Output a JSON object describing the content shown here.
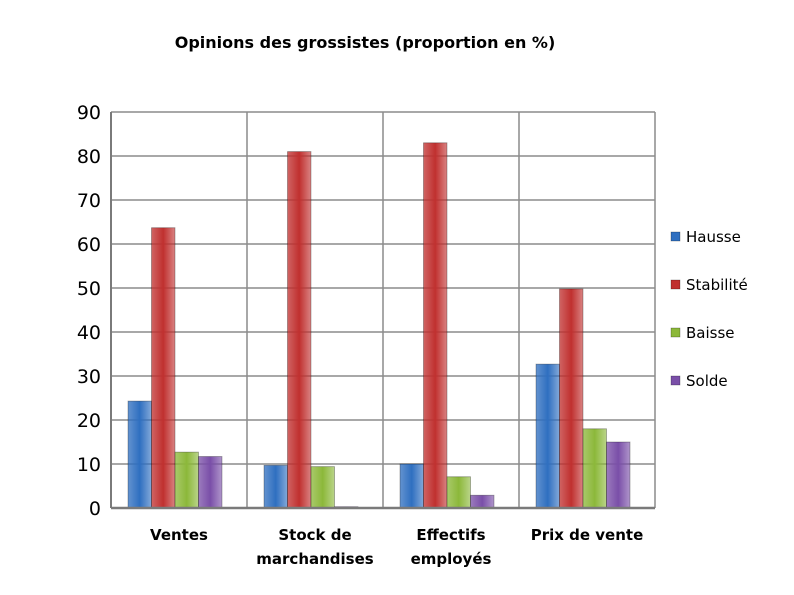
{
  "chart_data": {
    "type": "bar",
    "title": "Opinions des grossistes (proportion en %)",
    "xlabel": "",
    "ylabel": "",
    "categories": [
      "Ventes",
      "Stock de marchandises",
      "Effectifs employés",
      "Prix de vente"
    ],
    "category_lines": [
      [
        "Ventes"
      ],
      [
        "Stock de",
        "marchandises"
      ],
      [
        "Effectifs",
        "employés"
      ],
      [
        "Prix de vente"
      ]
    ],
    "series": [
      {
        "name": "Hausse",
        "color": "#2f6fc0",
        "values": [
          24.3,
          9.7,
          10,
          32.7
        ]
      },
      {
        "name": "Stabilité",
        "color": "#c0302f",
        "values": [
          63.7,
          81,
          83,
          49.8
        ]
      },
      {
        "name": "Baisse",
        "color": "#8cb83a",
        "values": [
          12.7,
          9.4,
          7.1,
          18
        ]
      },
      {
        "name": "Solde",
        "color": "#7a4fa8",
        "values": [
          11.7,
          0.3,
          2.9,
          15
        ]
      }
    ],
    "ylim": [
      0,
      90
    ],
    "yticks": [
      0,
      10,
      20,
      30,
      40,
      50,
      60,
      70,
      80,
      90
    ],
    "grid": true,
    "legend": "right"
  }
}
